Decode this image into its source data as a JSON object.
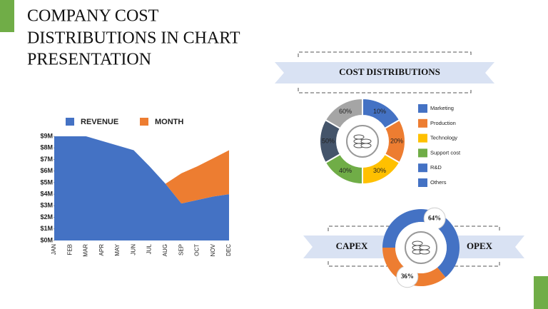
{
  "title_lines": [
    "COMPANY COST",
    "DISTRIBUTIONS IN CHART",
    "PRESENTATION"
  ],
  "chart_data": [
    {
      "type": "area",
      "categories": [
        "JAN",
        "FEB",
        "MAR",
        "APR",
        "MAY",
        "JUN",
        "JUL",
        "AUG",
        "SEP",
        "OCT",
        "NOV",
        "DEC"
      ],
      "series": [
        {
          "name": "REVENUE",
          "color": "#4472c4",
          "values": [
            9,
            9,
            9,
            8.6,
            8.2,
            7.8,
            6.4,
            4.9,
            3.2,
            3.5,
            3.8,
            4.0
          ]
        },
        {
          "name": "MONTH",
          "color": "#ed7d31",
          "values": [
            0,
            0,
            0,
            0,
            0,
            0,
            0,
            0,
            2.6,
            2.9,
            3.3,
            3.8
          ]
        }
      ],
      "stacked": true,
      "ylim": [
        0,
        9
      ],
      "yticks": [
        {
          "value": 0,
          "label": "$0M"
        },
        {
          "value": 1,
          "label": "$1M"
        },
        {
          "value": 2,
          "label": "$2M"
        },
        {
          "value": 3,
          "label": "$3M"
        },
        {
          "value": 4,
          "label": "$4M"
        },
        {
          "value": 5,
          "label": "$5M"
        },
        {
          "value": 6,
          "label": "$6M"
        },
        {
          "value": 7,
          "label": "$7M"
        },
        {
          "value": 8,
          "label": "$8M"
        },
        {
          "value": 9,
          "label": "$9M"
        }
      ]
    },
    {
      "type": "donut",
      "left_label": "CAPEX",
      "right_label": "OPEX",
      "categories": [
        "OPEX",
        "CAPEX"
      ],
      "values": [
        64,
        36
      ],
      "value_labels": [
        "64%",
        "36%"
      ],
      "colors": [
        "#4472c4",
        "#ed7d31"
      ]
    }
  ],
  "cost_distributions": {
    "title": "COST DISTRIBUTIONS",
    "items": [
      {
        "name": "Marketing",
        "label": "10%",
        "color": "#4472c4"
      },
      {
        "name": "Production",
        "label": "20%",
        "color": "#ed7d31"
      },
      {
        "name": "Technology",
        "label": "30%",
        "color": "#ffc000"
      },
      {
        "name": "Support cost",
        "label": "40%",
        "color": "#70ad47"
      },
      {
        "name": "R&D",
        "label": "50%",
        "color": "#44546a"
      },
      {
        "name": "Others",
        "label": "60%",
        "color": "#a5a5a5"
      }
    ],
    "legend_colors": [
      "#4472c4",
      "#ed7d31",
      "#ffc000",
      "#70ad47",
      "#4472c4",
      "#4472c4"
    ]
  }
}
